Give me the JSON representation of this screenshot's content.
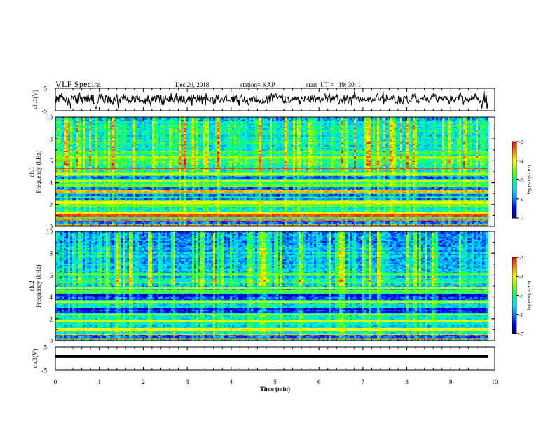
{
  "header": {
    "title": "VLF Spectra",
    "date": "Dec.20, 2018",
    "station": "station= KAP",
    "start": "start  UT =   19: 30: 1"
  },
  "chart_data": [
    {
      "type": "line",
      "name": "ch1-waveform",
      "ylabel": "ch.1(V)",
      "ylim": [
        -5,
        5
      ],
      "yticks": [
        "5",
        "-5"
      ],
      "xlim": [
        0,
        10
      ],
      "trace_end": 9.85,
      "waveform": [
        0.3,
        -1.5,
        1.5,
        -1.2,
        0.5,
        1.0,
        -1.0,
        2.2,
        0.5,
        1.7,
        1.2,
        3.0,
        -0.5,
        1.3,
        1.0,
        -0.5,
        0.6,
        -0.2,
        -1.0,
        0.0,
        1.3,
        -1.5,
        -2.6,
        0.6,
        -1.6,
        -0.4,
        -1.8,
        -4.0,
        -0.7,
        1.7,
        1.0,
        1.2,
        0.0,
        2.0,
        1.1,
        1.5,
        -0.6,
        -1.8,
        0.4,
        -1.8,
        2.0,
        -1.0,
        2.1,
        3.2,
        0.3,
        1.3,
        -0.9,
        1.2,
        -1.7,
        0.3,
        0.6,
        1.4,
        -0.3,
        -1.0,
        0.8,
        1.2,
        -1.2,
        1.5,
        2.5,
        0.5,
        -0.8,
        0.6,
        0.3,
        0.2,
        2.0,
        -1.5,
        -0.6,
        2.2,
        -2.0,
        -1.7,
        -1.8,
        -3.8,
        -4.0,
        -3.6,
        -2.0,
        -1.5,
        -0.5,
        1.3,
        2.2,
        1.2,
        0.6,
        2.5,
        1.1,
        0.0,
        1.5,
        -0.8,
        -1.0,
        -1.5,
        -1.2,
        1.8,
        1.2,
        2.0,
        0.8,
        -1.6,
        1.6,
        0.7,
        -0.8,
        1.2,
        -1.7,
        -1.2,
        -0.5,
        -1.7,
        -2.4,
        0.6,
        -0.3,
        1.1,
        -0.5,
        -0.6,
        1.2,
        2.4,
        -0.6,
        -2.8,
        -3.9,
        -0.5,
        0.4,
        -1.5,
        1.5,
        1.0,
        1.2,
        0.6,
        -0.5,
        2.4,
        0.6,
        1.2,
        2.1,
        0.6,
        -0.3,
        -0.4,
        1.3,
        0.2,
        -1.2,
        -0.5,
        -0.7,
        -1.4,
        -0.6,
        -0.8,
        2.0,
        -0.4,
        1.4,
        0.9,
        -1.3,
        -1.3,
        -1.0,
        1.3,
        1.4,
        2.0,
        0.2,
        0.4,
        -0.3,
        1.5,
        -1.2,
        -0.4,
        -0.4,
        -0.4,
        -0.8,
        -0.3,
        -1.4,
        -0.9,
        -1.4,
        0.5,
        -2.2,
        1.0,
        -0.4,
        -0.7,
        1.8,
        0.1,
        -2.2,
        0.0,
        -1.5,
        -3.0,
        -0.8,
        0.8,
        -0.6,
        1.9,
        -0.5,
        0.9,
        1.6,
        -0.9,
        -0.5,
        -0.2,
        1.8,
        1.3,
        0.1,
        1.9,
        0.9,
        -1.5,
        0.0,
        2.0,
        -0.4,
        -2.5,
        -0.6,
        1.6,
        -2.4,
        -0.7,
        0.4,
        1.8,
        0.3,
        0.2,
        -0.5,
        0.6,
        -0.4,
        -0.8,
        1.5,
        -1.5,
        -0.6,
        2.8,
        -0.3,
        1.0,
        0.3,
        -0.9,
        -0.8,
        -1.3,
        0.3,
        1.1,
        2.8,
        -0.5,
        1.5,
        0.4,
        -1.6,
        0.5,
        -0.5,
        1.6,
        -0.9,
        1.8,
        1.5,
        -1.1,
        -1.2,
        1.4,
        1.6,
        -1.1,
        -1.3,
        -1.9,
        0.1,
        -1.1,
        0.4,
        0.0,
        1.4,
        -0.9,
        1.1,
        0.5,
        -1.0,
        1.9,
        -2.8,
        0.8,
        -0.3,
        2.2,
        0.5,
        0.5,
        1.2,
        -0.6,
        -1.0,
        -0.3,
        2.2,
        0.3,
        -0.4,
        1.7,
        -1.3,
        -0.1,
        0.3,
        1.7,
        -2.2,
        0.9,
        1.1,
        -0.1,
        1.2,
        1.1,
        -2.6,
        2.8,
        0.7,
        -0.8,
        0.5,
        0.0,
        -0.3,
        -0.4,
        -1.5,
        0.5,
        1.1,
        1.1,
        0.8,
        0.8,
        -2.2,
        -0.9,
        0.4,
        -1.9,
        -0.3,
        1.9,
        1.0,
        1.3,
        0.1,
        1.8,
        -0.2,
        -1.1,
        -1.3,
        0.2,
        0.8,
        0.4,
        0.3,
        -0.3,
        -1.2,
        -0.7,
        0.6,
        1.4,
        1.5,
        1.9,
        -0.5,
        -0.1,
        -0.3,
        -0.5,
        -0.5,
        -0.6,
        -0.7,
        -0.3,
        0.6,
        1.2,
        -1.2,
        2.6,
        -1.3,
        1.3,
        -0.9,
        0.3,
        1.4,
        1.7,
        -0.9,
        -0.7,
        -2.7,
        -0.1,
        -2.7,
        0.4,
        0.9,
        1.2,
        2.0,
        1.0,
        -0.6,
        -0.9,
        -0.7,
        1.3,
        -0.9,
        -1.3,
        -0.4,
        -0.9,
        0.6,
        -1.4,
        -2.4,
        -1.9,
        0.5,
        0.5,
        -0.8,
        0.6,
        0.9,
        -1.2,
        0.8,
        1.2,
        1.4,
        0.8,
        -0.8,
        -0.5,
        2.0,
        -1.0,
        -1.0,
        0.2,
        -0.7,
        -0.7,
        -1.6,
        -0.4,
        -1.1,
        -1.8,
        -1.7,
        -1.4,
        0.6,
        -1.6,
        -0.9,
        -1.3,
        -0.5,
        -1.1,
        1.4,
        1.0,
        -1.8,
        -0.3,
        0.8,
        1.8,
        -1.3,
        -1.0,
        1.1,
        2.9,
        1.6,
        -0.8,
        0.7,
        2.3,
        0.9,
        1.7,
        2.2,
        2.6,
        1.1,
        1.3,
        0.5,
        1.0,
        1.1,
        1.6,
        1.8,
        0.6,
        1.6,
        0.6,
        2.6,
        0.3,
        -1.5,
        -0.6,
        -1.8,
        1.5,
        -1.3,
        -1.1,
        -1.4,
        0.8,
        0.9,
        1.1,
        -1.4,
        -1.4,
        -1.1,
        -0.2,
        -0.3,
        0.6,
        -0.3,
        0.7,
        0.1,
        -0.1,
        0.1,
        1.4,
        -0.3,
        0.9,
        -0.3,
        0.8,
        0.9,
        -0.3,
        -2.5,
        -0.3,
        -1.9,
        -0.9,
        1.4,
        0.5,
        0.6,
        0.0,
        -0.5,
        -0.7,
        1.6,
        0.7,
        0.1,
        -0.1,
        -0.1,
        0.5,
        0.5,
        1.1,
        -1.0,
        0.0,
        -1.5,
        1.7,
        -0.2,
        0.5,
        2.1,
        -0.9,
        0.6,
        1.5,
        1.0,
        -1.3,
        0.6,
        0.1,
        -0.3,
        1.1,
        0.3,
        1.3,
        0.2,
        -1.8,
        -0.8,
        0.0,
        0.6,
        0.8,
        -0.4,
        -0.1,
        0.9,
        2.0,
        2.6,
        0.4,
        0.8,
        1.9,
        -1.1,
        0.8,
        1.5,
        1.7,
        2.7,
        0.3,
        -1.3,
        -0.8,
        0.7,
        -0.2,
        1.6,
        -0.1,
        -0.5,
        0.8,
        1.1,
        1.6,
        2.6,
        1.2,
        1.9,
        -1.0,
        -2.1,
        -1.9,
        -0.1,
        0.1,
        0.1,
        -0.6,
        0.3,
        -1.4,
        -0.9,
        0.8,
        1.8,
        -2.1,
        0.8,
        -0.3,
        0.3,
        1.8,
        0.4,
        -1.7,
        -1.2,
        0.9,
        0.6,
        0.4,
        1.1,
        -2.6,
        0.4,
        0.6,
        1.9,
        0.4,
        3.7,
        2.8,
        1.4,
        0.4,
        0.2,
        0.5,
        0.9,
        1.2,
        -0.5,
        -1.5,
        -0.1,
        0.7,
        -0.4,
        -0.9,
        1.1,
        -0.4,
        0.2,
        0.1,
        0.5,
        -0.5,
        -0.6,
        -0.2,
        -0.5,
        -0.2,
        0.9,
        -1.0,
        -0.3,
        0.0,
        0.9,
        0.2,
        -0.6,
        -1.3,
        0.4,
        -0.4,
        -0.1,
        0.5,
        -0.5,
        -0.2,
        0.7,
        1.2,
        2.0,
        2.8,
        1.4,
        -0.1,
        0.0,
        -0.4,
        0.5,
        1.5,
        1.0,
        0.6,
        1.9,
        3.7,
        -2.1,
        -0.2,
        0.6,
        -0.1,
        -0.6,
        2.2,
        0.5,
        -0.2,
        0.0,
        0.1,
        0.3,
        -0.4,
        0.5,
        0.5,
        1.5,
        -0.2,
        0.5,
        1.8,
        0.8,
        0.6,
        -0.7,
        -1.5,
        -1.1,
        -1.2,
        -2.3,
        -1.2,
        1.3,
        1.7,
        0.8,
        -1.9,
        0.9,
        -0.7,
        -0.8,
        -1.4,
        -1.9,
        0.5,
        1.4,
        1.4,
        0.7,
        0.8,
        0.6,
        1.7,
        -1.2,
        -1.5,
        -1.8,
        -0.4,
        -0.6,
        -0.7,
        -0.8,
        0.2,
        0.5,
        2.5,
        0.8,
        1.2,
        2.0,
        2.5,
        0.5,
        1.6,
        -1.2,
        -1.2,
        -0.4,
        0.6,
        -1.4,
        -1.0,
        -1.2,
        0.6,
        0.5,
        0.4,
        0.7,
        0.1,
        0.1,
        0.4,
        2.1,
        1.1,
        -0.2,
        0.5,
        -0.8,
        1.0,
        0.6,
        -0.5,
        -1.3,
        -1.1,
        0.4,
        0.0,
        0.6,
        1.9,
        1.2,
        1.4,
        2.8,
        0.8,
        1.4,
        2.3,
        2.2,
        -0.2,
        -0.4,
        -0.4,
        -1.4,
        0.8,
        -0.3,
        1.2,
        0.6,
        1.1,
        1.4,
        0.4,
        -0.2,
        0.7,
        -0.3,
        0.5,
        1.4,
        1.3,
        0.4,
        0.1,
        0.9,
        -0.2,
        -0.3,
        -0.2,
        -2.2,
        -1.0,
        0.6,
        2.2,
        -0.7,
        1.4,
        0.1,
        0.0,
        -0.5,
        -1.0,
        0.1,
        -0.2,
        0.6,
        1.1,
        1.1,
        0.8,
        1.9,
        -0.4,
        1.6,
        2.8,
        3.0,
        1.6,
        1.4,
        1.6,
        1.2,
        -2.4,
        -1.0,
        -0.5,
        -0.6,
        0.8,
        0.2,
        -0.5,
        -0.4,
        0.4,
        -1.0,
        -0.5,
        0.6,
        0.2,
        0.3,
        -0.3,
        2.1,
        1.1,
        0.3,
        1.2,
        -0.1,
        0.9,
        2.8,
        1.6,
        0.5,
        1.1,
        0.6,
        -0.2,
        0.6,
        -0.6,
        -1.6,
        -0.5,
        -1.2,
        -2.4,
        -4.0,
        -1.1,
        -0.2,
        3.1,
        3.6,
        -1.5,
        -0.1,
        1.7,
        1.6,
        -4.2,
        -2.4,
        -0.5
      ]
    },
    {
      "type": "heatmap",
      "name": "ch1-spectrogram",
      "ylabel": "ch.1\nFrequency  (kHz)",
      "ylim": [
        0,
        10
      ],
      "yticks": [
        "0",
        "2",
        "4",
        "6",
        "8",
        "10"
      ],
      "xlim": [
        0,
        10
      ],
      "colorbar": {
        "label": "log(PSD)(V²/Hz)",
        "range": [
          -7,
          -3
        ],
        "ticks": [
          "-3",
          "-4",
          "-5",
          "-6",
          "-7"
        ]
      },
      "bands_khz": [
        [
          0.1,
          -3.2
        ],
        [
          0.6,
          -3.5
        ],
        [
          1.0,
          -3.3
        ],
        [
          1.2,
          -4.0
        ],
        [
          1.9,
          -4.6
        ],
        [
          2.2,
          -4.0
        ],
        [
          2.6,
          -4.8
        ],
        [
          3.2,
          -3.7
        ],
        [
          3.7,
          -4.6
        ],
        [
          4.2,
          -4.3
        ],
        [
          4.8,
          -4.2
        ],
        [
          5.3,
          -3.3
        ],
        [
          6.3,
          -4.4
        ],
        [
          6.8,
          -4.8
        ]
      ],
      "dark_bands_khz": [
        [
          2.4,
          2.9
        ],
        [
          3.3,
          3.6
        ],
        [
          4.4,
          4.6
        ],
        [
          0.2,
          0.5
        ]
      ]
    },
    {
      "type": "heatmap",
      "name": "ch2-spectrogram",
      "ylabel": "ch.2\nFrequency  (kHz)",
      "ylim": [
        0,
        10
      ],
      "yticks": [
        "0",
        "2",
        "4",
        "6",
        "8",
        "10"
      ],
      "xlim": [
        0,
        10
      ],
      "colorbar": {
        "label": "log(PSD)(V²/Hz)",
        "range": [
          -7,
          -3
        ],
        "ticks": [
          "-3",
          "-4",
          "-5",
          "-6",
          "-7"
        ]
      },
      "bands_khz": [
        [
          0.2,
          -3.4
        ],
        [
          0.6,
          -3.8
        ],
        [
          1.0,
          -4.0
        ],
        [
          1.8,
          -4.2
        ],
        [
          2.4,
          -4.5
        ],
        [
          3.5,
          -4.3
        ],
        [
          4.5,
          -4.7
        ],
        [
          4.8,
          -4.3
        ],
        [
          5.3,
          -4.6
        ],
        [
          6.1,
          -4.6
        ]
      ],
      "dark_bands_khz": [
        [
          3.7,
          4.2
        ],
        [
          2.6,
          2.9
        ],
        [
          0.3,
          0.5
        ]
      ]
    },
    {
      "type": "line",
      "name": "ch3-waveform",
      "ylabel": "ch.3(V)",
      "ylim": [
        -5,
        5
      ],
      "yticks": [
        "5",
        "-5"
      ],
      "xlim": [
        0,
        10
      ],
      "trace_end": 9.85,
      "constant_value": 0.8,
      "xlabel": "Time  (min)",
      "xticks": [
        "0",
        "1",
        "2",
        "3",
        "4",
        "5",
        "6",
        "7",
        "8",
        "9",
        "10"
      ]
    }
  ],
  "colormap": [
    "#000080",
    "#0000ff",
    "#0080ff",
    "#00e0ff",
    "#00ff80",
    "#80ff00",
    "#ffff00",
    "#ff8000",
    "#ff0000",
    "#ffffff"
  ]
}
